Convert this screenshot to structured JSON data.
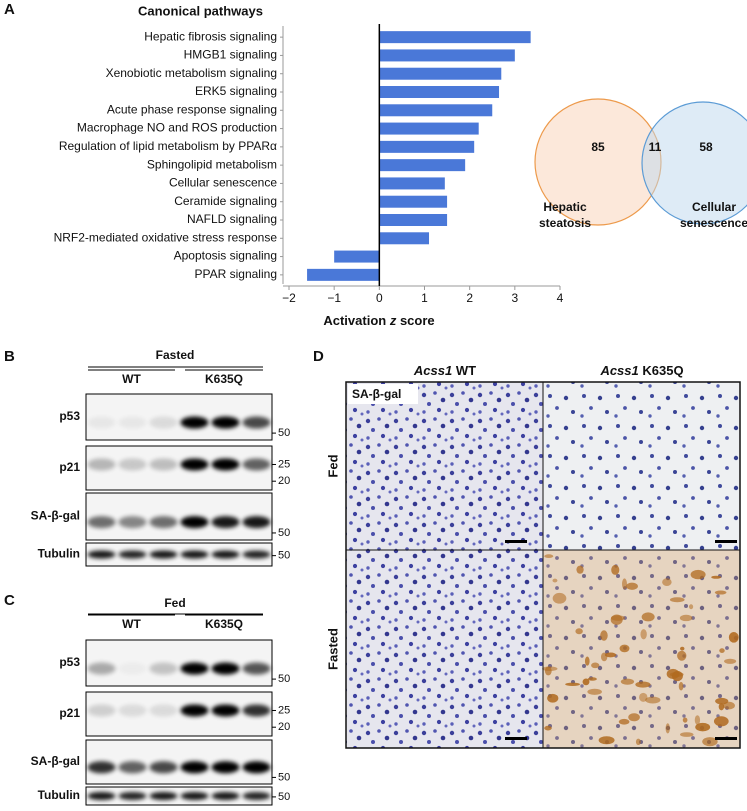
{
  "panel_labels": [
    "A",
    "B",
    "C",
    "D"
  ],
  "chart_data": {
    "type": "hbar",
    "title": "Canonical pathways",
    "categories": [
      "Hepatic fibrosis signaling",
      "HMGB1 signaling",
      "Xenobiotic metabolism signaling",
      "ERK5 signaling",
      "Acute phase response signaling",
      "Macrophage NO and ROS production",
      "Regulation of lipid metabolism by PPARα",
      "Sphingolipid metabolism",
      "Cellular senescence",
      "Ceramide signaling",
      "NAFLD signaling",
      "NRF2-mediated oxidative stress response",
      "Apoptosis signaling",
      "PPAR signaling"
    ],
    "values": [
      3.35,
      3.0,
      2.7,
      2.65,
      2.5,
      2.2,
      2.1,
      1.9,
      1.45,
      1.5,
      1.5,
      1.1,
      -1.0,
      -1.6
    ],
    "color": "#4a78d8",
    "xlim": [
      -2,
      4
    ],
    "xticks": [
      {
        "value": -2,
        "label": "−2"
      },
      {
        "value": -1,
        "label": "−1"
      },
      0,
      1,
      2,
      3,
      4
    ],
    "xlabel": [
      "Activation ",
      "z",
      " score"
    ]
  },
  "venn": {
    "sets": [
      {
        "label": [
          "Hepatic",
          "steatosis"
        ],
        "count": 85
      },
      {
        "label": [
          "Cellular",
          "senescence"
        ],
        "count": 58
      }
    ],
    "overlap": 11
  },
  "blots": [
    {
      "condition": "Fasted",
      "groups": [
        "WT",
        "K635Q"
      ],
      "rows": [
        {
          "label": "p53",
          "markers": [
            50
          ]
        },
        {
          "label": "p21",
          "markers": [
            25,
            20
          ]
        },
        {
          "label": "SA-β-gal",
          "markers": [
            50
          ]
        },
        {
          "label": "Tubulin",
          "markers": [
            50
          ]
        }
      ]
    },
    {
      "condition": "Fed",
      "groups": [
        "WT",
        "K635Q"
      ],
      "rows": [
        {
          "label": "p53",
          "markers": [
            50
          ]
        },
        {
          "label": "p21",
          "markers": [
            25,
            20
          ]
        },
        {
          "label": "SA-β-gal",
          "markers": [
            50
          ]
        },
        {
          "label": "Tubulin",
          "markers": [
            50
          ]
        }
      ]
    }
  ],
  "histology": {
    "columns": [
      [
        "Acss1",
        " WT"
      ],
      [
        "Acss1",
        " K635Q"
      ]
    ],
    "rows": [
      "Fed",
      "Fasted"
    ],
    "stain": "SA-β-gal"
  }
}
